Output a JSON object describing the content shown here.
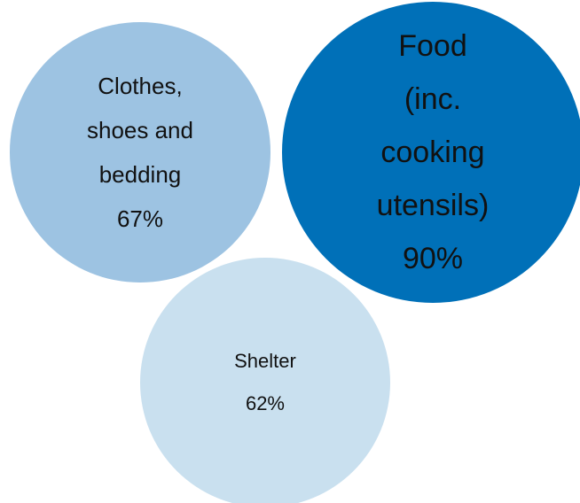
{
  "chart_data": {
    "type": "bubble",
    "categories": [
      "Clothes, shoes and bedding",
      "Food (inc. cooking utensils)",
      "Shelter"
    ],
    "values": [
      67,
      90,
      62
    ],
    "value_labels": [
      "67%",
      "90%",
      "62%"
    ],
    "colors": [
      "#9dc3e2",
      "#0070b8",
      "#c9e0ef"
    ]
  }
}
